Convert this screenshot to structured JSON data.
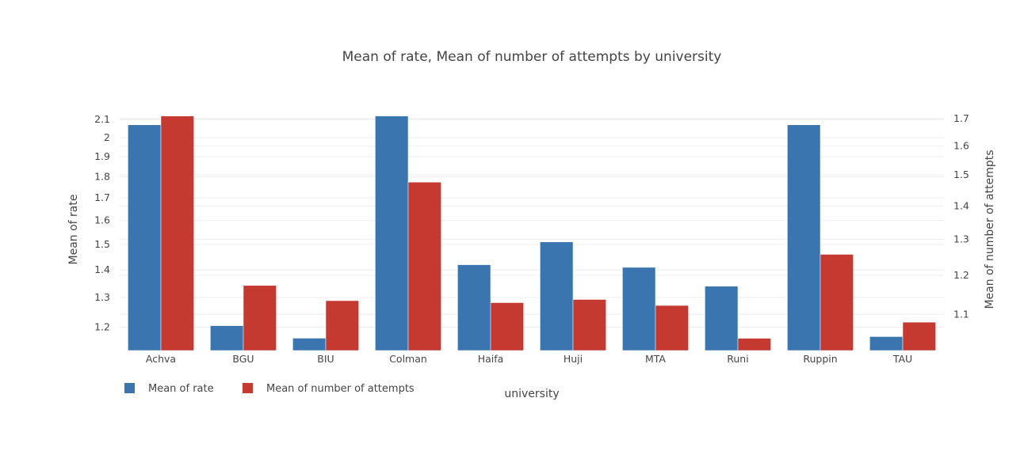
{
  "chart_data": {
    "type": "bar",
    "title": "Mean of rate, Mean of number of attempts by university",
    "xlabel": "university",
    "categories": [
      "Achva",
      "BGU",
      "BIU",
      "Colman",
      "Haifa",
      "Huji",
      "MTA",
      "Runi",
      "Ruppin",
      "TAU"
    ],
    "series": [
      {
        "name": "Mean of rate",
        "axis": "left",
        "color": "#3b75af",
        "values": [
          2.07,
          1.205,
          1.165,
          2.12,
          1.42,
          1.51,
          1.41,
          1.34,
          2.07,
          1.17
        ]
      },
      {
        "name": "Mean of number of attempts",
        "axis": "right",
        "color": "#c43a31",
        "values": [
          1.71,
          1.173,
          1.134,
          1.476,
          1.129,
          1.137,
          1.122,
          1.043,
          1.257,
          1.081
        ]
      }
    ],
    "y_left": {
      "label": "Mean of rate",
      "scale": "log",
      "range": [
        1.127,
        2.15
      ],
      "ticks": [
        "1.2",
        "1.3",
        "1.4",
        "1.5",
        "1.6",
        "1.7",
        "1.8",
        "1.9",
        "2",
        "2.1"
      ]
    },
    "y_right": {
      "label": "Mean of number of attempts",
      "scale": "log",
      "range": [
        1.015,
        1.73
      ],
      "ticks": [
        "1.1",
        "1.2",
        "1.3",
        "1.4",
        "1.5",
        "1.6",
        "1.7"
      ]
    },
    "grid": true,
    "legend_position": "bottom-left"
  }
}
